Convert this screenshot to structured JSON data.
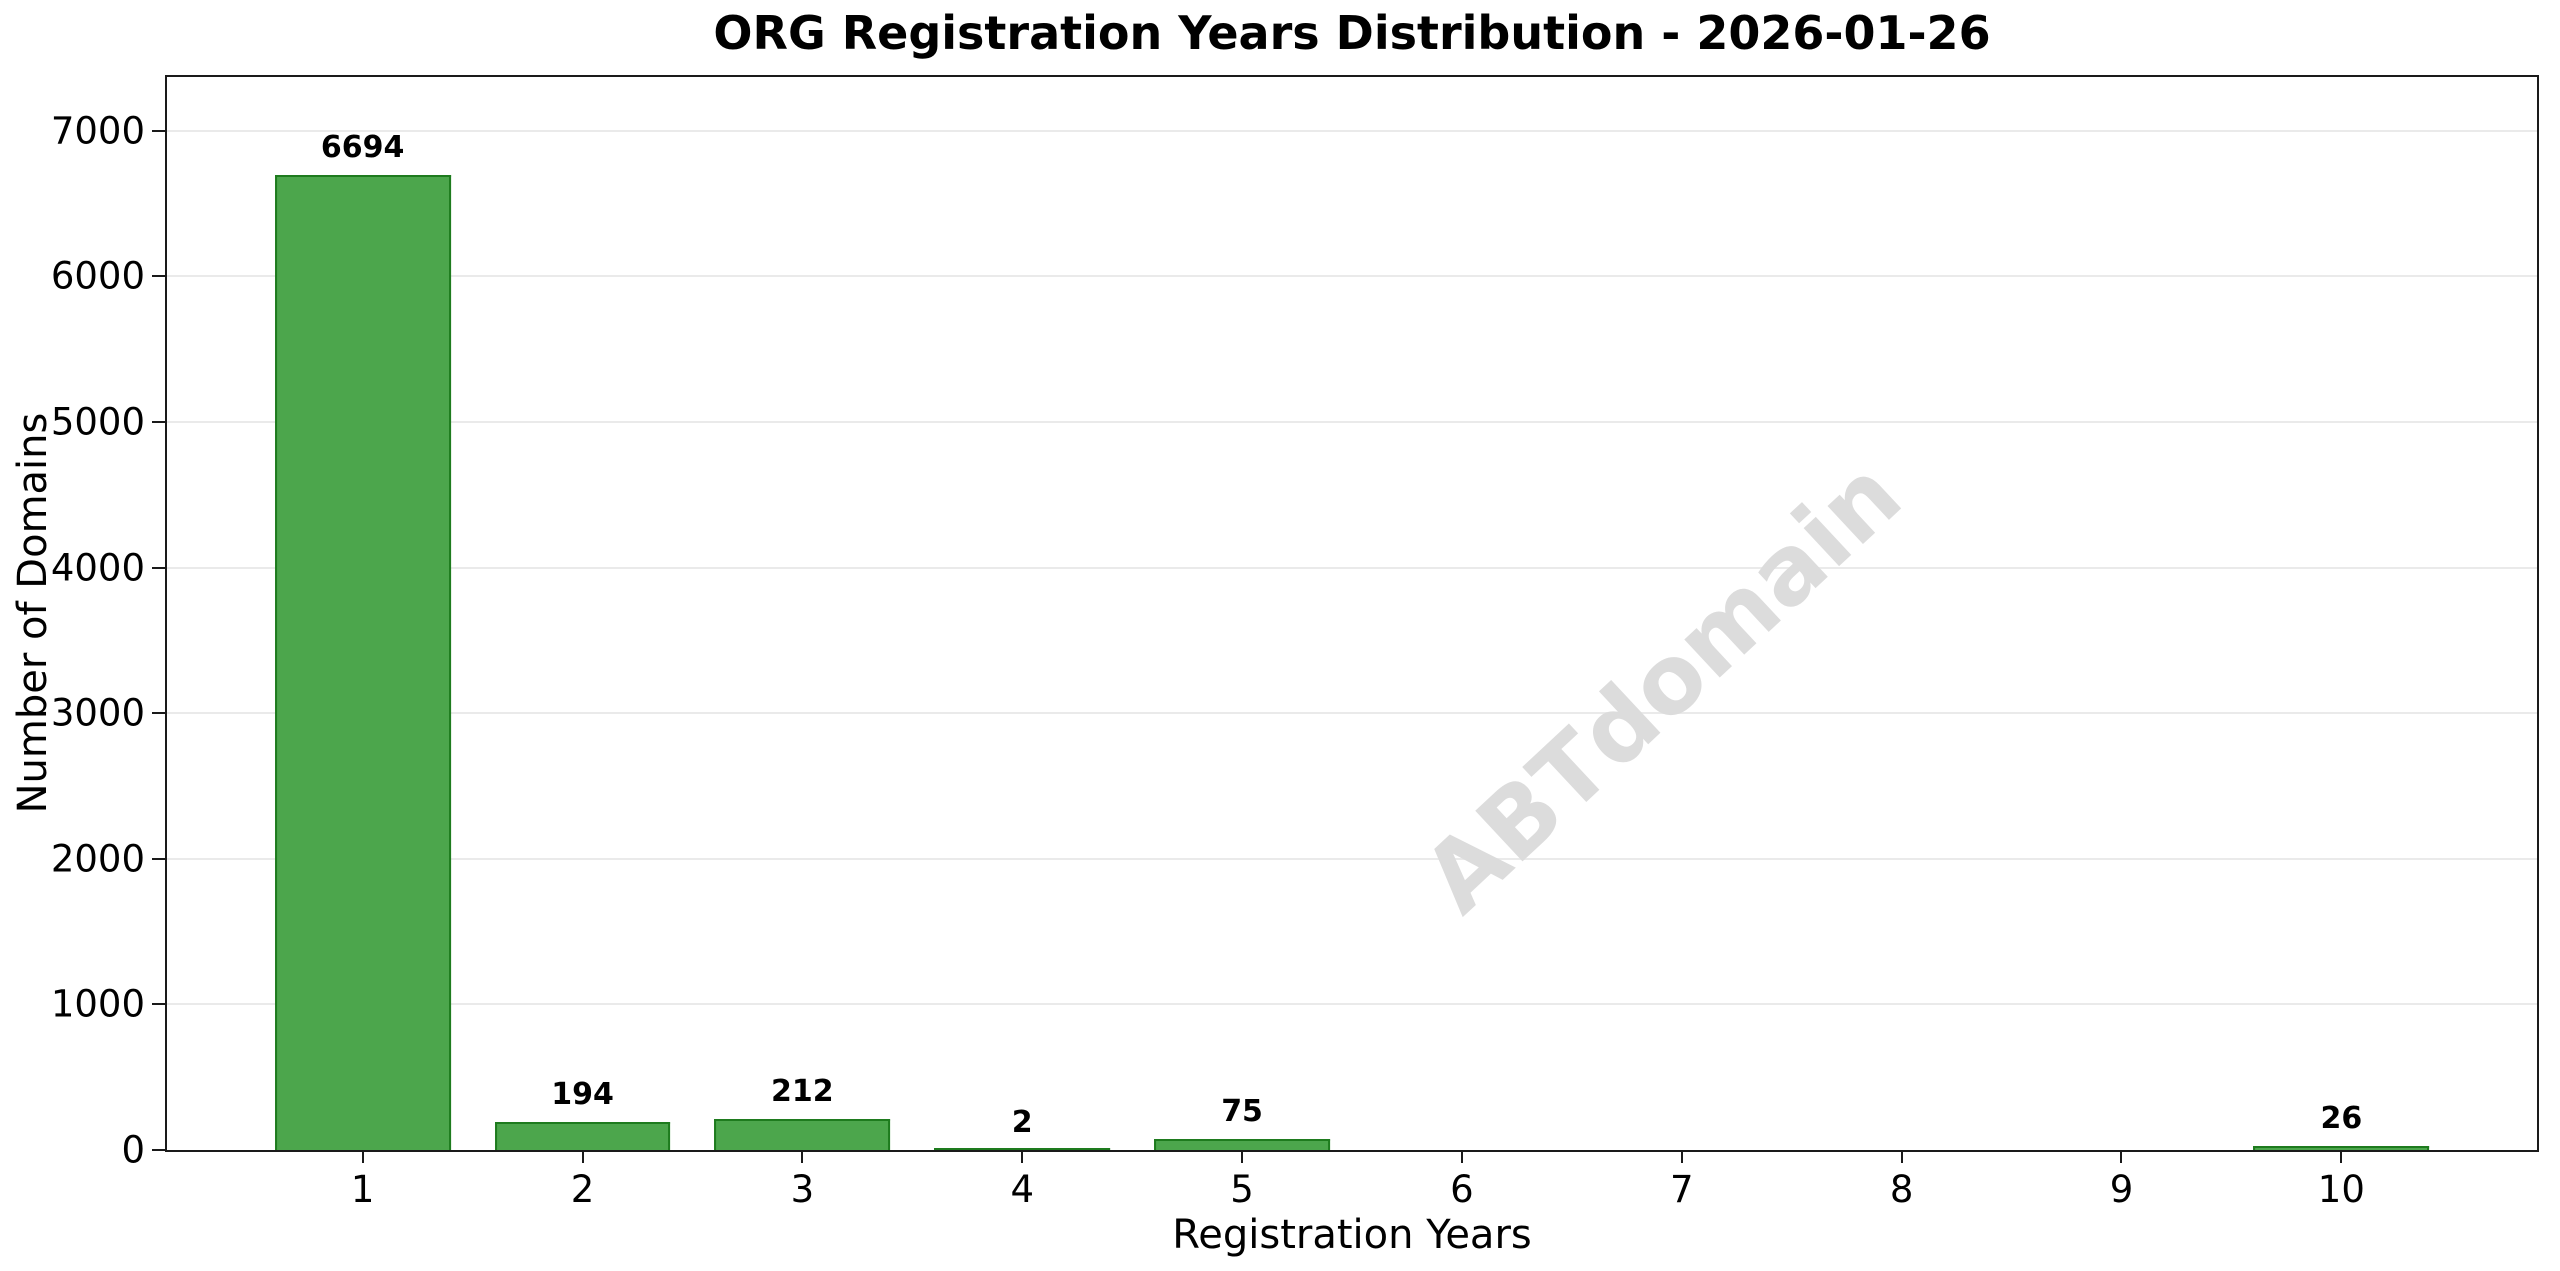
{
  "title": "ORG Registration Years Distribution - 2026-01-26",
  "watermark": "ABTdomain",
  "chart_data": {
    "type": "bar",
    "title": "ORG Registration Years Distribution - 2026-01-26",
    "xlabel": "Registration Years",
    "ylabel": "Number of Domains",
    "categories": [
      1,
      2,
      3,
      4,
      5,
      6,
      7,
      8,
      9,
      10
    ],
    "values": [
      6694,
      194,
      212,
      2,
      75,
      0,
      0,
      0,
      0,
      26
    ],
    "bar_labels": [
      "6694",
      "194",
      "212",
      "2",
      "75",
      "",
      "",
      "",
      "",
      "26"
    ],
    "yticks": [
      0,
      1000,
      2000,
      3000,
      4000,
      5000,
      6000,
      7000
    ],
    "ylim": [
      0,
      7370
    ],
    "xlim": [
      0.11,
      10.89
    ],
    "bar_width_units": 0.8,
    "grid": "horizontal-major",
    "legend": "none",
    "colors": {
      "bar_fill": "#4CA64C",
      "bar_edge": "#1E7B1E",
      "gridline": "#eaeaea",
      "axis": "#1a1a1a",
      "watermark_text": "#dcdcdc"
    },
    "watermark": {
      "text": "ABTdomain",
      "angle_deg": -43
    }
  }
}
